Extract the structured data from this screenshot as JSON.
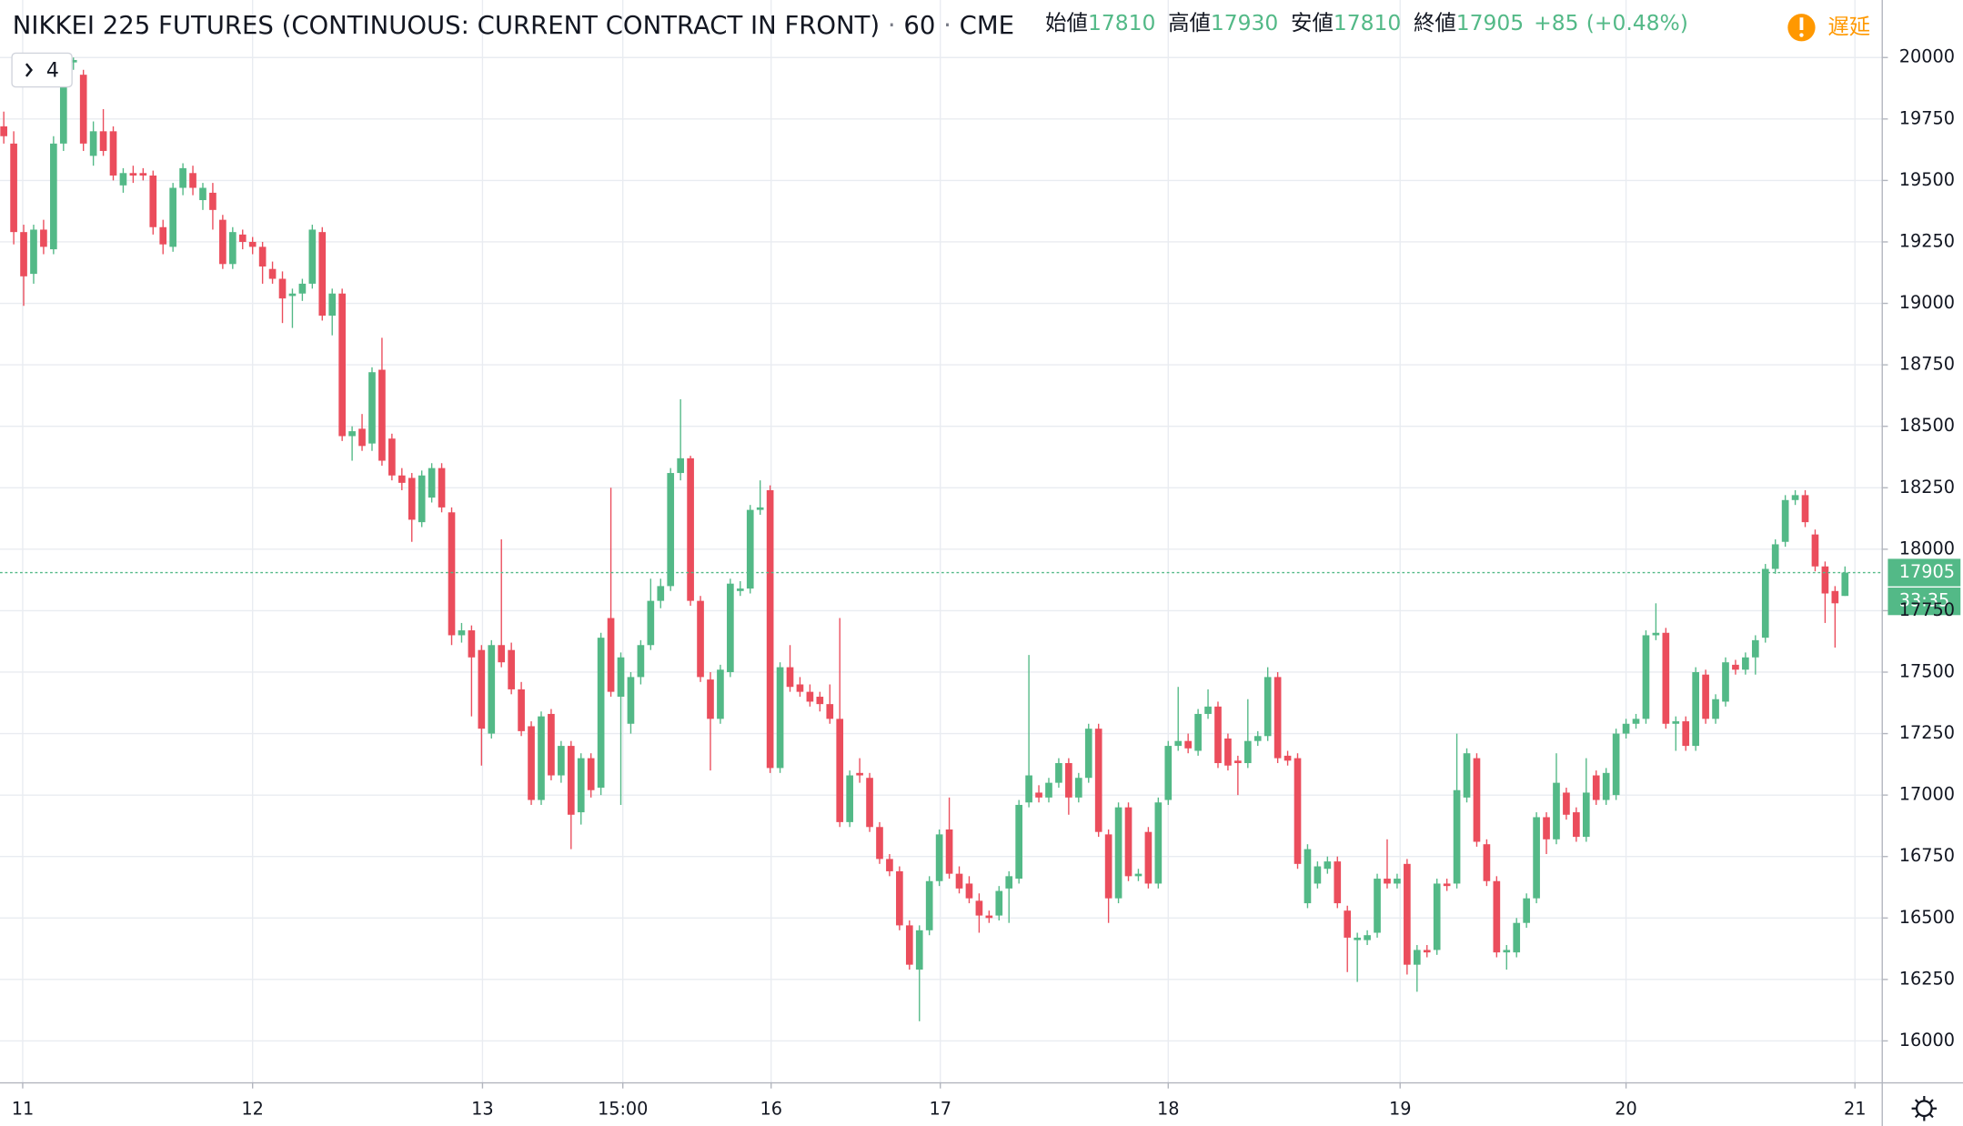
{
  "chart_data": {
    "type": "candlestick",
    "title": "NIKKEI 225 FUTURES (CONTINUOUS: CURRENT CONTRACT IN FRONT)",
    "separator": "·",
    "interval": "60",
    "exchange": "CME",
    "ohlc_header": [
      {
        "label": "始値",
        "value": 17810
      },
      {
        "label": "高値",
        "value": 17930
      },
      {
        "label": "安値",
        "value": 17810
      },
      {
        "label": "終値",
        "value": 17905
      }
    ],
    "change": {
      "value": 85,
      "label": "+85"
    },
    "change_pct": {
      "value": 0.48,
      "label": "(+0.48%)"
    },
    "delay_label": "遅延",
    "indicator_count": 4,
    "last_price": 17905,
    "countdown": "33:35",
    "up_color": "#53b987",
    "down_color": "#eb4d5c",
    "grid": true,
    "xlim": [
      -0.38,
      188.68
    ],
    "xticks": [
      {
        "value": 1.9,
        "label": "11"
      },
      {
        "value": 25.0,
        "label": "12"
      },
      {
        "value": 48.1,
        "label": "13"
      },
      {
        "value": 62.2,
        "label": "15:00"
      },
      {
        "value": 77.1,
        "label": "16"
      },
      {
        "value": 94.1,
        "label": "17"
      },
      {
        "value": 117.0,
        "label": "18"
      },
      {
        "value": 140.3,
        "label": "19"
      },
      {
        "value": 163.0,
        "label": "20"
      },
      {
        "value": 186.0,
        "label": "21"
      }
    ],
    "ylim": [
      15832,
      20234
    ],
    "yticks": [
      16000,
      16250,
      16500,
      16750,
      17000,
      17250,
      17500,
      17750,
      18000,
      18250,
      18500,
      18750,
      19000,
      19250,
      19500,
      19750,
      20000
    ],
    "open": [
      19720,
      19650,
      19290,
      19120,
      19300,
      19220,
      19650,
      19980,
      19930,
      19600,
      19700,
      19700,
      19480,
      19530,
      19530,
      19520,
      19310,
      19230,
      19470,
      19530,
      19420,
      19450,
      19340,
      19160,
      19280,
      19250,
      19230,
      19140,
      19100,
      19030,
      19040,
      19080,
      19290,
      18950,
      19040,
      18460,
      18490,
      18430,
      18730,
      18450,
      18300,
      18290,
      18110,
      18210,
      18330,
      18150,
      17650,
      17670,
      17590,
      17250,
      17610,
      17590,
      17430,
      17280,
      16980,
      17330,
      17080,
      17200,
      16930,
      17150,
      17030,
      17720,
      17400,
      17290,
      17480,
      17610,
      17790,
      17850,
      18310,
      18370,
      17790,
      17470,
      17310,
      17500,
      17830,
      17840,
      18160,
      18240,
      17110,
      17520,
      17450,
      17420,
      17400,
      17370,
      17310,
      16890,
      17090,
      17070,
      16870,
      16740,
      16690,
      16470,
      16290,
      16450,
      16650,
      16860,
      16680,
      16640,
      16570,
      16510,
      16510,
      16620,
      16660,
      16970,
      17010,
      16990,
      17050,
      17130,
      16990,
      17070,
      17270,
      16840,
      16580,
      16950,
      16670,
      16850,
      16640,
      16980,
      17200,
      17220,
      17180,
      17330,
      17360,
      17230,
      17140,
      17130,
      17220,
      17240,
      17480,
      17160,
      17150,
      16560,
      16640,
      16700,
      16730,
      16530,
      16410,
      16410,
      16440,
      16660,
      16640,
      16720,
      16310,
      16370,
      16370,
      16640,
      16640,
      16990,
      17150,
      16800,
      16650,
      16360,
      16360,
      16480,
      16580,
      16910,
      16820,
      17010,
      16930,
      16830,
      17080,
      16980,
      17000,
      17250,
      17290,
      17310,
      17650,
      17660,
      17290,
      17300,
      17200,
      17490,
      17310,
      17380,
      17530,
      17510,
      17560,
      17640,
      17920,
      18030,
      18200,
      18220,
      18060,
      17930,
      17830,
      17810
    ],
    "high": [
      19780,
      19700,
      19320,
      19320,
      19340,
      19680,
      20000,
      20000,
      19950,
      19740,
      19790,
      19720,
      19550,
      19560,
      19550,
      19540,
      19340,
      19490,
      19570,
      19560,
      19490,
      19490,
      19360,
      19310,
      19300,
      19270,
      19250,
      19170,
      19130,
      19060,
      19100,
      19320,
      19310,
      19060,
      19060,
      18500,
      18550,
      18740,
      18860,
      18470,
      18330,
      18310,
      18320,
      18350,
      18350,
      18170,
      17700,
      17690,
      17610,
      17630,
      18040,
      17620,
      17460,
      17300,
      17340,
      17350,
      17220,
      17220,
      17170,
      17170,
      17660,
      18250,
      17580,
      17500,
      17630,
      17880,
      17880,
      18330,
      18610,
      18380,
      17810,
      17500,
      17530,
      17880,
      17870,
      18180,
      18280,
      18260,
      17540,
      17610,
      17480,
      17450,
      17420,
      17450,
      17720,
      17100,
      17150,
      17090,
      16890,
      16760,
      16710,
      16490,
      16470,
      16670,
      16860,
      16990,
      16710,
      16670,
      16600,
      16530,
      16630,
      16690,
      16980,
      17570,
      17040,
      17070,
      17150,
      17150,
      17090,
      17290,
      17290,
      16860,
      16970,
      16970,
      16700,
      16870,
      16990,
      17220,
      17440,
      17250,
      17350,
      17430,
      17380,
      17250,
      17160,
      17390,
      17260,
      17520,
      17500,
      17180,
      17170,
      16800,
      16730,
      16750,
      16750,
      16550,
      16440,
      16450,
      16680,
      16820,
      16680,
      16740,
      16390,
      16390,
      16660,
      16660,
      17250,
      17190,
      17170,
      16820,
      16670,
      16390,
      16500,
      16600,
      16930,
      16930,
      17170,
      17030,
      16950,
      17150,
      17100,
      17110,
      17270,
      17310,
      17330,
      17670,
      17780,
      17680,
      17320,
      17320,
      17520,
      17510,
      17410,
      17560,
      17550,
      17580,
      17650,
      17940,
      18040,
      18220,
      18240,
      18240,
      18080,
      17950,
      17850,
      17930
    ],
    "low": [
      19650,
      19240,
      18990,
      19080,
      19200,
      19200,
      19620,
      19950,
      19620,
      19560,
      19600,
      19500,
      19450,
      19490,
      19500,
      19280,
      19200,
      19210,
      19440,
      19440,
      19380,
      19300,
      19140,
      19140,
      19220,
      19200,
      19080,
      19080,
      18920,
      18900,
      19010,
      19060,
      18930,
      18870,
      18440,
      18360,
      18400,
      18400,
      18340,
      18280,
      18240,
      18030,
      18090,
      18190,
      18150,
      17610,
      17620,
      17320,
      17120,
      17230,
      17520,
      17410,
      17240,
      16960,
      16960,
      17060,
      17050,
      16780,
      16880,
      16990,
      17000,
      17400,
      16960,
      17250,
      17450,
      17590,
      17760,
      17830,
      18280,
      17770,
      17460,
      17100,
      17290,
      17480,
      17810,
      17820,
      18140,
      17090,
      17090,
      17420,
      17400,
      17360,
      17340,
      17290,
      16870,
      16870,
      17050,
      16850,
      16720,
      16670,
      16450,
      16290,
      16080,
      16430,
      16630,
      16660,
      16600,
      16560,
      16440,
      16480,
      16490,
      16480,
      16640,
      16950,
      16970,
      16970,
      17030,
      16920,
      16970,
      17050,
      16830,
      16480,
      16560,
      16650,
      16650,
      16620,
      16620,
      16960,
      17180,
      17170,
      17160,
      17310,
      17110,
      17100,
      17000,
      17110,
      17200,
      17220,
      17130,
      17120,
      16700,
      16540,
      16620,
      16680,
      16540,
      16280,
      16240,
      16390,
      16420,
      16620,
      16620,
      16270,
      16200,
      16340,
      16350,
      16610,
      16620,
      16970,
      16790,
      16630,
      16340,
      16290,
      16340,
      16460,
      16560,
      16760,
      16800,
      16900,
      16810,
      16810,
      16960,
      16960,
      16980,
      17230,
      17270,
      17290,
      17630,
      17270,
      17180,
      17180,
      17180,
      17290,
      17290,
      17360,
      17490,
      17490,
      17490,
      17620,
      17900,
      18010,
      18180,
      18090,
      17910,
      17700,
      17600,
      17810
    ],
    "close": [
      19680,
      19290,
      19110,
      19300,
      19230,
      19650,
      19980,
      19990,
      19650,
      19700,
      19620,
      19520,
      19530,
      19520,
      19520,
      19310,
      19240,
      19470,
      19550,
      19470,
      19470,
      19380,
      19160,
      19290,
      19250,
      19230,
      19150,
      19100,
      19020,
      19040,
      19080,
      19300,
      18950,
      19040,
      18460,
      18480,
      18420,
      18720,
      18360,
      18300,
      18270,
      18120,
      18300,
      18330,
      18170,
      17650,
      17670,
      17560,
      17270,
      17610,
      17540,
      17430,
      17260,
      16980,
      17320,
      17080,
      17200,
      16920,
      17150,
      17020,
      17640,
      17420,
      17560,
      17480,
      17610,
      17790,
      17850,
      18310,
      18370,
      17790,
      17480,
      17310,
      17510,
      17860,
      17840,
      18160,
      18170,
      17110,
      17520,
      17440,
      17420,
      17380,
      17370,
      17310,
      16890,
      17080,
      17080,
      16870,
      16740,
      16690,
      16470,
      16310,
      16450,
      16650,
      16840,
      16680,
      16620,
      16580,
      16510,
      16500,
      16610,
      16670,
      16960,
      17080,
      16990,
      17050,
      17130,
      16990,
      17070,
      17270,
      16850,
      16580,
      16950,
      16670,
      16680,
      16640,
      16970,
      17200,
      17220,
      17190,
      17330,
      17360,
      17130,
      17120,
      17130,
      17220,
      17240,
      17480,
      17150,
      17140,
      16720,
      16780,
      16710,
      16730,
      16560,
      16420,
      16420,
      16430,
      16660,
      16640,
      16660,
      16310,
      16370,
      16360,
      16640,
      16630,
      17020,
      17170,
      16810,
      16650,
      16360,
      16370,
      16480,
      16580,
      16910,
      16820,
      17050,
      16920,
      16830,
      17010,
      16980,
      17090,
      17250,
      17290,
      17310,
      17650,
      17660,
      17290,
      17300,
      17200,
      17500,
      17310,
      17390,
      17540,
      17510,
      17560,
      17630,
      17920,
      18020,
      18200,
      18220,
      18110,
      17930,
      17820,
      17780,
      17905
    ]
  }
}
